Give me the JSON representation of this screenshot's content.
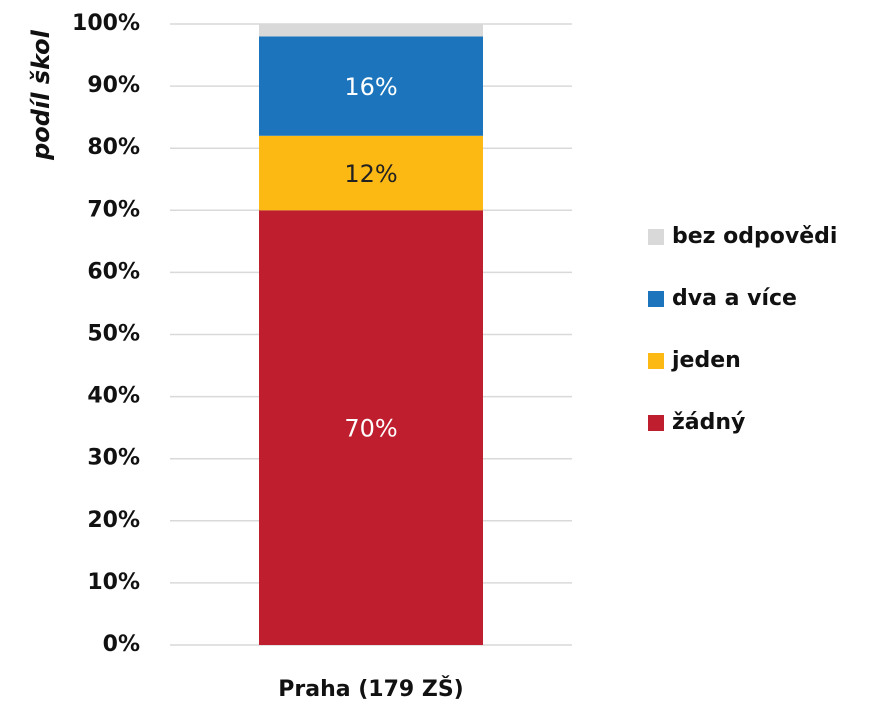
{
  "chart_data": {
    "type": "stacked_bar",
    "y_label": "podíl škol",
    "categories": [
      "Praha (179 ZŠ)"
    ],
    "series": [
      {
        "name": "žádný",
        "color": "#be1e2d",
        "label_color": "#ffffff",
        "values": [
          70
        ],
        "value_labels": [
          "70%"
        ]
      },
      {
        "name": "jeden",
        "color": "#fdb913",
        "label_color": "#222222",
        "values": [
          12
        ],
        "value_labels": [
          "12%"
        ]
      },
      {
        "name": "dva a více",
        "color": "#1c75bc",
        "label_color": "#ffffff",
        "values": [
          16
        ],
        "value_labels": [
          "16%"
        ]
      },
      {
        "name": "bez odpovědi",
        "color": "#d9d9d9",
        "values": [
          2
        ]
      }
    ],
    "ylim": [
      0,
      100
    ],
    "yticks": [
      {
        "value": 0,
        "label": "0%"
      },
      {
        "value": 10,
        "label": "10%"
      },
      {
        "value": 20,
        "label": "20%"
      },
      {
        "value": 30,
        "label": "30%"
      },
      {
        "value": 40,
        "label": "40%"
      },
      {
        "value": 50,
        "label": "50%"
      },
      {
        "value": 60,
        "label": "60%"
      },
      {
        "value": 70,
        "label": "70%"
      },
      {
        "value": 80,
        "label": "80%"
      },
      {
        "value": 90,
        "label": "90%"
      },
      {
        "value": 100,
        "label": "100%"
      }
    ],
    "grid": true,
    "legend": "right"
  }
}
